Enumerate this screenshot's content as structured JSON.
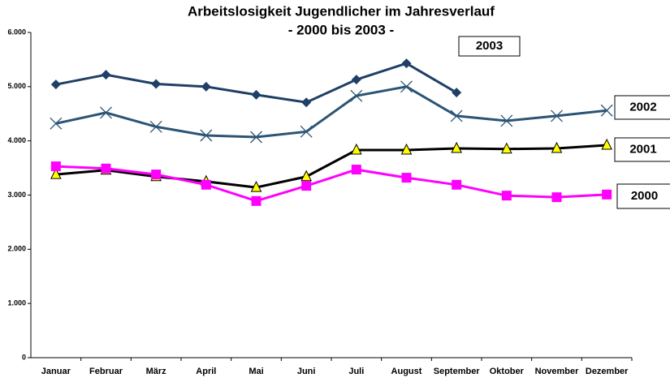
{
  "chart_data": {
    "type": "line",
    "title": "Arbeitslosigkeit Jugendlicher im Jahresverlauf",
    "subtitle": "-  2000 bis 2003 -",
    "categories": [
      "Januar",
      "Februar",
      "März",
      "April",
      "Mai",
      "Juni",
      "Juli",
      "August",
      "September",
      "Oktober",
      "November",
      "Dezember"
    ],
    "series": [
      {
        "name": "2003",
        "color": "#1F3F66",
        "marker": "diamond",
        "marker_color": "#1F3F66",
        "values": [
          5040,
          5220,
          5050,
          5000,
          4850,
          4710,
          5130,
          5430,
          4890,
          null,
          null,
          null
        ]
      },
      {
        "name": "2002",
        "color": "#2B5475",
        "marker": "x",
        "marker_color": "#2B5475",
        "values": [
          4320,
          4520,
          4260,
          4100,
          4070,
          4170,
          4830,
          5000,
          4460,
          4370,
          4460,
          4560
        ]
      },
      {
        "name": "2001",
        "color": "#000000",
        "marker": "triangle",
        "marker_color": "#FFFF00",
        "values": [
          3380,
          3460,
          3340,
          3250,
          3140,
          3340,
          3830,
          3830,
          3860,
          3850,
          3860,
          3920
        ]
      },
      {
        "name": "2000",
        "color": "#FF00FF",
        "marker": "square",
        "marker_color": "#FF00FF",
        "values": [
          3530,
          3490,
          3380,
          3190,
          2890,
          3170,
          3470,
          3320,
          3190,
          2990,
          2960,
          3010
        ]
      }
    ],
    "ylim": [
      0,
      6000
    ],
    "yticks": [
      0,
      {
        "value": 1000,
        "label": "1.000"
      },
      {
        "value": 2000,
        "label": "2.000"
      },
      {
        "value": 3000,
        "label": "3.000"
      },
      {
        "value": 4000,
        "label": "4.000"
      },
      {
        "value": 5000,
        "label": "5.000"
      },
      {
        "value": 6000,
        "label": "6.000"
      }
    ],
    "grid": false
  }
}
